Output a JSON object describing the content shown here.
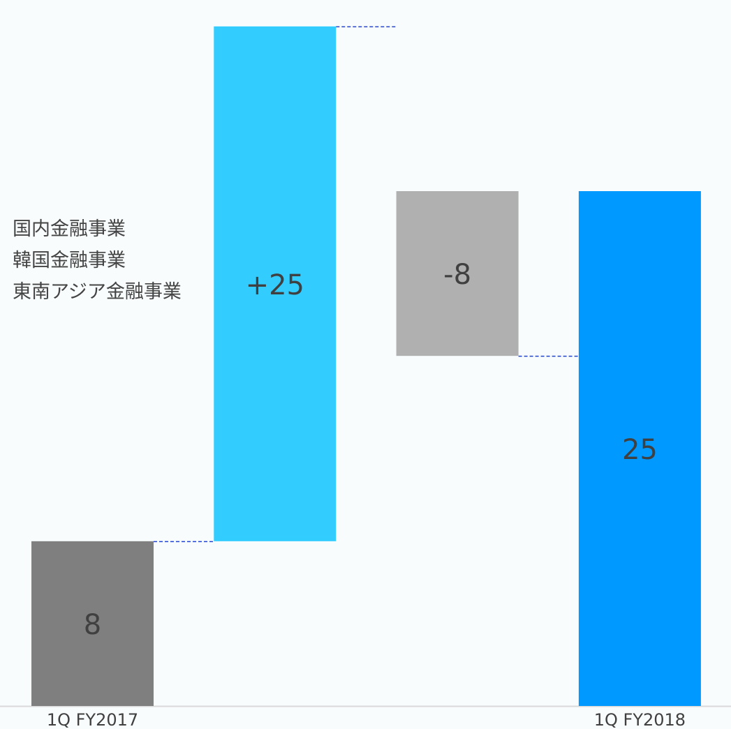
{
  "chart_data": {
    "type": "bar",
    "subtype": "waterfall",
    "title": "",
    "xlabel": "",
    "ylabel": "",
    "ylim": [
      0,
      33
    ],
    "grid": false,
    "categories": [
      "1Q FY2017",
      "",
      "",
      "1Q FY2018"
    ],
    "bars": [
      {
        "category": "1Q FY2017",
        "kind": "total",
        "base": 0,
        "value": 8,
        "label": "8",
        "color": "#7f7f7f"
      },
      {
        "category": "",
        "kind": "increase",
        "base": 8,
        "value": 25,
        "label": "+25",
        "color": "#33ccff"
      },
      {
        "category": "",
        "kind": "decrease",
        "base": 25,
        "value": 8,
        "label": "-8",
        "color": "#b0b0b0"
      },
      {
        "category": "1Q FY2018",
        "kind": "total",
        "base": 0,
        "value": 25,
        "label": "25",
        "color": "#0099ff"
      }
    ],
    "connector_color": "#2244cc",
    "annotation_lines": [
      "国内金融事業",
      "韓国金融事業",
      "東南アジア金融事業"
    ]
  }
}
